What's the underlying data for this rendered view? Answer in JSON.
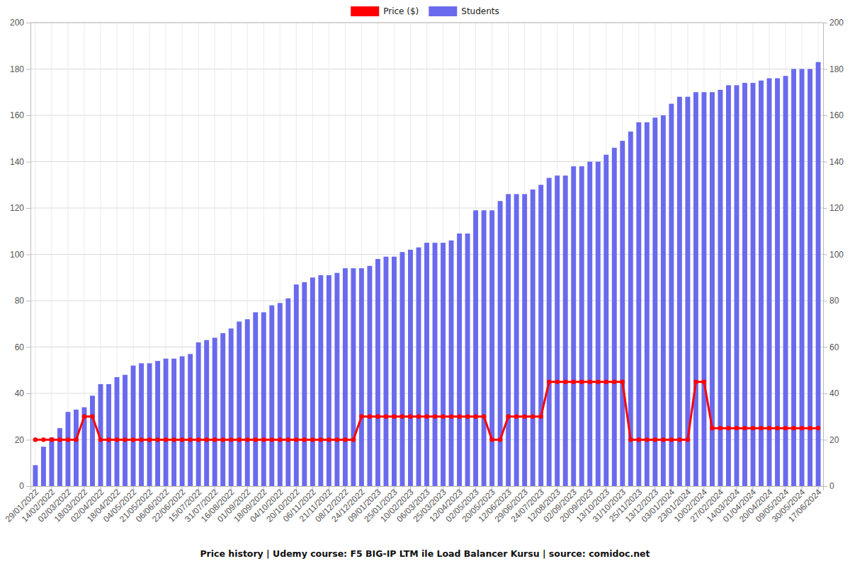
{
  "chart_data": {
    "type": "bar",
    "title": "Price history | Udemy course: F5 BIG-IP LTM ile Load Balancer Kursu | source: comidoc.net",
    "categories": [
      "29/01/2022",
      null,
      "14/02/2022",
      null,
      "02/03/2022",
      null,
      "18/03/2022",
      null,
      "02/04/2022",
      null,
      "18/04/2022",
      null,
      "04/05/2022",
      null,
      "21/05/2022",
      null,
      "06/06/2022",
      null,
      "22/06/2022",
      null,
      "15/07/2022",
      null,
      "31/07/2022",
      null,
      "16/08/2022",
      null,
      "01/09/2022",
      null,
      "18/09/2022",
      null,
      "04/10/2022",
      null,
      "20/10/2022",
      null,
      "06/11/2022",
      null,
      "21/11/2022",
      null,
      "08/12/2022",
      null,
      "24/12/2022",
      null,
      "09/01/2023",
      null,
      "25/01/2023",
      null,
      "10/02/2023",
      null,
      "06/03/2023",
      null,
      "25/03/2023",
      null,
      "12/04/2023",
      null,
      "02/05/2023",
      null,
      "20/05/2023",
      null,
      "12/06/2023",
      null,
      "29/06/2023",
      null,
      "24/07/2023",
      null,
      "12/08/2023",
      null,
      "02/09/2023",
      null,
      "20/09/2023",
      null,
      "13/10/2023",
      null,
      "31/10/2023",
      null,
      "25/11/2023",
      null,
      "13/12/2023",
      null,
      "03/01/2024",
      null,
      "23/01/2024",
      null,
      "10/02/2024",
      null,
      "27/02/2024",
      null,
      "14/03/2024",
      null,
      "01/04/2024",
      null,
      "20/04/2024",
      null,
      "09/05/2024",
      null,
      "30/05/2024",
      null,
      "17/06/2024"
    ],
    "series": [
      {
        "name": "Price ($)",
        "type": "line",
        "color": "#ff0000",
        "marker": "circle",
        "axis": "y2",
        "values": [
          20,
          20,
          20,
          20,
          20,
          20,
          30,
          30,
          20,
          20,
          20,
          20,
          20,
          20,
          20,
          20,
          20,
          20,
          20,
          20,
          20,
          20,
          20,
          20,
          20,
          20,
          20,
          20,
          20,
          20,
          20,
          20,
          20,
          20,
          20,
          20,
          20,
          20,
          20,
          20,
          30,
          30,
          30,
          30,
          30,
          30,
          30,
          30,
          30,
          30,
          30,
          30,
          30,
          30,
          30,
          30,
          20,
          20,
          30,
          30,
          30,
          30,
          30,
          45,
          45,
          45,
          45,
          45,
          45,
          45,
          45,
          45,
          45,
          20,
          20,
          20,
          20,
          20,
          20,
          20,
          20,
          45,
          45,
          25,
          25,
          25,
          25,
          25,
          25,
          25,
          25,
          25,
          25,
          25,
          25,
          25,
          25
        ]
      },
      {
        "name": "Students",
        "type": "bar",
        "color": "#6a6aee",
        "values": [
          9,
          17,
          21,
          25,
          32,
          33,
          34,
          39,
          44,
          44,
          47,
          48,
          52,
          53,
          53,
          54,
          55,
          55,
          56,
          57,
          62,
          63,
          64,
          66,
          68,
          71,
          72,
          75,
          75,
          78,
          79,
          81,
          87,
          88,
          90,
          91,
          91,
          92,
          94,
          94,
          94,
          95,
          98,
          99,
          99,
          101,
          102,
          103,
          105,
          105,
          105,
          106,
          109,
          109,
          119,
          119,
          119,
          123,
          126,
          126,
          126,
          128,
          130,
          133,
          134,
          134,
          138,
          138,
          140,
          140,
          143,
          146,
          149,
          153,
          157,
          157,
          159,
          160,
          165,
          168,
          168,
          170,
          170,
          170,
          171,
          173,
          173,
          174,
          174,
          175,
          176,
          176,
          177,
          180,
          180,
          180,
          183
        ]
      }
    ],
    "ylim": [
      0,
      200
    ],
    "yticks": [
      0,
      20,
      40,
      60,
      80,
      100,
      120,
      140,
      160,
      180,
      200
    ],
    "y2lim": [
      0,
      200
    ],
    "y2ticks": [
      0,
      20,
      40,
      60,
      80,
      100,
      120,
      140,
      160,
      180,
      200
    ],
    "grid": true,
    "legend": "top"
  }
}
